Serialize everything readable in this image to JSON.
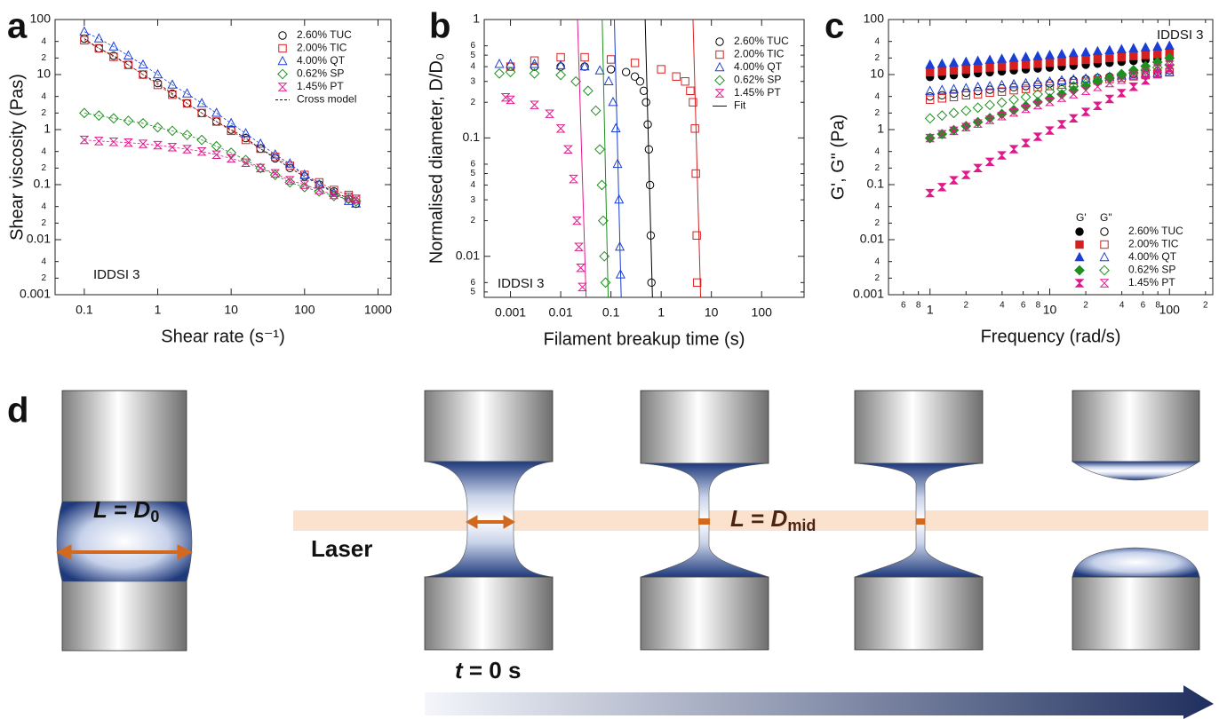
{
  "chart_data": [
    {
      "type": "scatter",
      "panel_label": "a",
      "x_label": "Shear rate (s⁻¹)",
      "y_label": "Shear viscosity (Pas)",
      "annotation": "IDDSI 3",
      "fit_label": "Cross model",
      "log_x": true,
      "log_y": true,
      "xlim": [
        0.04,
        1500
      ],
      "ylim": [
        0.001,
        100
      ],
      "xticks": [
        0.1,
        1,
        10,
        100,
        1000
      ],
      "yticks": [
        0.001,
        {
          "value": 0.002,
          "label": "2"
        },
        {
          "value": 0.004,
          "label": "4"
        },
        0.01,
        {
          "value": 0.02,
          "label": "2"
        },
        {
          "value": 0.04,
          "label": "4"
        },
        0.1,
        {
          "value": 0.2,
          "label": "2"
        },
        {
          "value": 0.4,
          "label": "4"
        },
        1,
        {
          "value": 2,
          "label": "2"
        },
        {
          "value": 4,
          "label": "4"
        },
        10,
        {
          "value": 20,
          "label": "2"
        },
        {
          "value": 40,
          "label": "4"
        },
        100
      ],
      "x": [
        0.1,
        0.158,
        0.251,
        0.398,
        0.631,
        1,
        1.58,
        2.51,
        3.98,
        6.31,
        10,
        15.8,
        25.1,
        39.8,
        63.1,
        100,
        158,
        251,
        398,
        501
      ],
      "series": [
        {
          "name": "2.60% TUC",
          "color": "#000000",
          "marker": "circle",
          "values": [
            45,
            30,
            22,
            15,
            10,
            7,
            4.5,
            3,
            2,
            1.4,
            1,
            0.7,
            0.45,
            0.3,
            0.2,
            0.14,
            0.1,
            0.075,
            0.055,
            0.045
          ]
        },
        {
          "name": "2.00% TIC",
          "color": "#d62020",
          "marker": "square",
          "values": [
            42,
            30,
            21,
            15,
            10,
            6.5,
            4.3,
            3,
            2,
            1.4,
            0.95,
            0.65,
            0.45,
            0.32,
            0.22,
            0.15,
            0.11,
            0.08,
            0.065,
            0.055
          ]
        },
        {
          "name": "4.00% QT",
          "color": "#1a3fd6",
          "marker": "triangle",
          "values": [
            60,
            45,
            32,
            22,
            15,
            10,
            6.5,
            4.5,
            3,
            2,
            1.3,
            0.85,
            0.55,
            0.35,
            0.24,
            0.15,
            0.1,
            0.07,
            0.05,
            0.045
          ]
        },
        {
          "name": "0.62% SP",
          "color": "#1f8f1f",
          "marker": "diamond",
          "values": [
            2,
            1.8,
            1.6,
            1.45,
            1.3,
            1.1,
            0.95,
            0.8,
            0.65,
            0.5,
            0.38,
            0.28,
            0.2,
            0.15,
            0.11,
            0.09,
            0.075,
            0.062,
            0.055,
            0.05
          ]
        },
        {
          "name": "1.45% PT",
          "color": "#e0198c",
          "marker": "hourglass",
          "values": [
            0.65,
            0.62,
            0.6,
            0.58,
            0.55,
            0.52,
            0.48,
            0.44,
            0.4,
            0.35,
            0.3,
            0.25,
            0.2,
            0.16,
            0.12,
            0.1,
            0.08,
            0.065,
            0.06,
            0.055
          ]
        }
      ]
    },
    {
      "type": "scatter",
      "panel_label": "b",
      "x_label": "Filament breakup time (s)",
      "y_label": "Normalised diameter, D/D₀",
      "annotation": "IDDSI 3",
      "fit_label": "Fit",
      "log_x": true,
      "log_y": true,
      "xlim": [
        0.0003,
        700
      ],
      "ylim": [
        0.0045,
        1
      ],
      "xticks": [
        0.001,
        0.01,
        0.1,
        1,
        10,
        100
      ],
      "yticks": [
        {
          "value": 0.005,
          "label": "5"
        },
        {
          "value": 0.006,
          "label": "6"
        },
        0.01,
        {
          "value": 0.02,
          "label": "2"
        },
        {
          "value": 0.03,
          "label": "3"
        },
        {
          "value": 0.04,
          "label": "4"
        },
        {
          "value": 0.05,
          "label": "5"
        },
        {
          "value": 0.06,
          "label": "6"
        },
        0.1,
        {
          "value": 0.2,
          "label": "2"
        },
        {
          "value": 0.3,
          "label": "3"
        },
        {
          "value": 0.4,
          "label": "4"
        },
        {
          "value": 0.5,
          "label": "5"
        },
        {
          "value": 0.6,
          "label": "6"
        },
        1
      ],
      "series": [
        {
          "name": "2.60% TUC",
          "color": "#000000",
          "marker": "circle",
          "x": [
            0.001,
            0.003,
            0.01,
            0.03,
            0.1,
            0.2,
            0.3,
            0.38,
            0.45,
            0.5,
            0.54,
            0.57,
            0.6,
            0.62,
            0.64
          ],
          "values": [
            0.4,
            0.4,
            0.4,
            0.4,
            0.38,
            0.36,
            0.33,
            0.3,
            0.25,
            0.2,
            0.13,
            0.08,
            0.04,
            0.015,
            0.006
          ],
          "fit_x": [
            0.48,
            0.67
          ],
          "fit_y": [
            1,
            0.0045
          ]
        },
        {
          "name": "2.00% TIC",
          "color": "#d62020",
          "marker": "square",
          "x": [
            0.001,
            0.003,
            0.01,
            0.03,
            0.1,
            0.3,
            1,
            2,
            3,
            3.8,
            4.3,
            4.7,
            4.9,
            5.1,
            5.2
          ],
          "values": [
            0.4,
            0.45,
            0.48,
            0.48,
            0.46,
            0.43,
            0.38,
            0.33,
            0.3,
            0.25,
            0.2,
            0.12,
            0.05,
            0.015,
            0.006
          ],
          "fit_x": [
            4.3,
            6.1
          ],
          "fit_y": [
            1,
            0.0045
          ]
        },
        {
          "name": "4.00% QT",
          "color": "#1a3fd6",
          "marker": "triangle",
          "x": [
            0.0006,
            0.001,
            0.003,
            0.01,
            0.03,
            0.06,
            0.09,
            0.11,
            0.125,
            0.135,
            0.145,
            0.15,
            0.155
          ],
          "values": [
            0.42,
            0.42,
            0.42,
            0.41,
            0.4,
            0.37,
            0.3,
            0.2,
            0.12,
            0.06,
            0.03,
            0.012,
            0.007
          ],
          "fit_x": [
            0.117,
            0.16
          ],
          "fit_y": [
            1,
            0.0045
          ]
        },
        {
          "name": "0.62% SP",
          "color": "#1f8f1f",
          "marker": "diamond",
          "x": [
            0.0006,
            0.001,
            0.003,
            0.01,
            0.02,
            0.035,
            0.05,
            0.06,
            0.066,
            0.07,
            0.074,
            0.078
          ],
          "values": [
            0.35,
            0.36,
            0.35,
            0.34,
            0.3,
            0.25,
            0.17,
            0.08,
            0.04,
            0.02,
            0.01,
            0.006
          ],
          "fit_x": [
            0.067,
            0.088
          ],
          "fit_y": [
            1,
            0.0045
          ]
        },
        {
          "name": "1.45% PT",
          "color": "#e0198c",
          "marker": "hourglass",
          "x": [
            0.0008,
            0.001,
            0.003,
            0.006,
            0.01,
            0.014,
            0.018,
            0.021,
            0.023,
            0.025,
            0.027
          ],
          "values": [
            0.22,
            0.21,
            0.19,
            0.16,
            0.12,
            0.08,
            0.045,
            0.02,
            0.012,
            0.008,
            0.0055
          ],
          "fit_x": [
            0.0216,
            0.032
          ],
          "fit_y": [
            1,
            0.0045
          ]
        }
      ]
    },
    {
      "type": "scatter",
      "panel_label": "c",
      "x_label": "Frequency (rad/s)",
      "y_label": "G', G\" (Pa)",
      "annotation": "IDDSI 3",
      "legend_headers": [
        "G'",
        "G\""
      ],
      "log_x": true,
      "log_y": true,
      "xlim": [
        0.45,
        230
      ],
      "ylim": [
        0.001,
        100
      ],
      "xticks": [
        {
          "value": 0.6,
          "label": "6"
        },
        {
          "value": 0.8,
          "label": "8"
        },
        1,
        {
          "value": 2,
          "label": "2"
        },
        {
          "value": 4,
          "label": "4"
        },
        {
          "value": 6,
          "label": "6"
        },
        {
          "value": 8,
          "label": "8"
        },
        10,
        {
          "value": 20,
          "label": "2"
        },
        {
          "value": 40,
          "label": "4"
        },
        {
          "value": 60,
          "label": "6"
        },
        {
          "value": 80,
          "label": "8"
        },
        100,
        {
          "value": 200,
          "label": "2"
        }
      ],
      "yticks": [
        0.001,
        {
          "value": 0.002,
          "label": "2"
        },
        {
          "value": 0.004,
          "label": "4"
        },
        0.01,
        {
          "value": 0.02,
          "label": "2"
        },
        {
          "value": 0.04,
          "label": "4"
        },
        0.1,
        {
          "value": 0.2,
          "label": "2"
        },
        {
          "value": 0.4,
          "label": "4"
        },
        1,
        {
          "value": 2,
          "label": "2"
        },
        {
          "value": 4,
          "label": "4"
        },
        10,
        {
          "value": 20,
          "label": "2"
        },
        {
          "value": 40,
          "label": "4"
        },
        100
      ],
      "x": [
        1,
        1.26,
        1.58,
        2,
        2.51,
        3.16,
        3.98,
        5.01,
        6.31,
        7.94,
        10,
        12.6,
        15.8,
        20,
        25.1,
        31.6,
        39.8,
        50.1,
        63.1,
        79.4,
        100
      ],
      "series": [
        {
          "name": "2.60% TUC",
          "color": "#000000",
          "marker": "circle",
          "storage": [
            9,
            9.4,
            9.7,
            10.1,
            10.6,
            11,
            11.4,
            11.9,
            12.4,
            12.9,
            13.4,
            13.9,
            14.5,
            15.1,
            15.7,
            16.3,
            17,
            17.7,
            18.4,
            19.2,
            20
          ],
          "loss": [
            4,
            4.2,
            4.5,
            4.7,
            5,
            5.3,
            5.6,
            5.9,
            6.2,
            6.6,
            6.9,
            7.3,
            7.8,
            8.2,
            8.7,
            9.1,
            9.7,
            10.2,
            10.8,
            11.4,
            12
          ]
        },
        {
          "name": "2.00% TIC",
          "color": "#d62020",
          "marker": "square",
          "storage": [
            11,
            11.4,
            11.9,
            12.4,
            12.9,
            13.4,
            14,
            14.5,
            15.1,
            15.7,
            16.4,
            17,
            17.7,
            18.5,
            19.2,
            20,
            20.8,
            21.7,
            22.6,
            23.5,
            24
          ],
          "loss": [
            3.5,
            3.7,
            3.9,
            4.2,
            4.4,
            4.7,
            4.9,
            5.2,
            5.5,
            5.9,
            6.2,
            6.6,
            7,
            7.4,
            7.8,
            8.3,
            8.8,
            9.3,
            9.8,
            10.4,
            11
          ]
        },
        {
          "name": "4.00% QT",
          "color": "#1a3fd6",
          "marker": "triangle",
          "storage": [
            15,
            15.6,
            16.3,
            16.9,
            17.6,
            18.3,
            19.1,
            19.9,
            20.7,
            21.5,
            22.4,
            23.3,
            24.3,
            25.3,
            26.3,
            27.4,
            28.5,
            29.7,
            30.9,
            32,
            33
          ],
          "loss": [
            5,
            5.2,
            5.4,
            5.6,
            5.9,
            6.1,
            6.4,
            6.6,
            6.9,
            7.2,
            7.4,
            7.8,
            8.1,
            8.4,
            8.7,
            9.1,
            9.5,
            9.9,
            10.3,
            10.6,
            11
          ]
        },
        {
          "name": "0.62% SP",
          "color": "#1f8f1f",
          "marker": "diamond",
          "storage": [
            0.7,
            0.83,
            0.98,
            1.16,
            1.37,
            1.62,
            1.92,
            2.27,
            2.68,
            3.17,
            3.7,
            4.4,
            5.2,
            6.2,
            7.3,
            8.6,
            10.2,
            12,
            14.2,
            16.8,
            20
          ],
          "loss": [
            1.6,
            1.8,
            2,
            2.2,
            2.5,
            2.8,
            3.1,
            3.5,
            3.9,
            4.4,
            4.9,
            5.5,
            6.1,
            6.9,
            7.7,
            8.6,
            9.6,
            10.7,
            12,
            13.4,
            15
          ]
        },
        {
          "name": "1.45% PT",
          "color": "#e0198c",
          "marker": "hourglass",
          "storage": [
            0.07,
            0.09,
            0.12,
            0.15,
            0.2,
            0.26,
            0.34,
            0.44,
            0.57,
            0.74,
            0.96,
            1.25,
            1.6,
            2.1,
            2.7,
            3.6,
            4.6,
            6,
            7.8,
            10.1,
            13
          ],
          "loss": [
            0.7,
            0.82,
            0.95,
            1.11,
            1.29,
            1.5,
            1.76,
            2.05,
            2.39,
            2.78,
            3.2,
            3.8,
            4.4,
            5.1,
            6,
            7,
            8.1,
            9.5,
            11,
            12.9,
            15
          ]
        }
      ]
    }
  ],
  "diagram": {
    "panel_label": "d",
    "initial_label": [
      "L",
      " = ",
      "D",
      "0"
    ],
    "laser_label": "Laser",
    "neck_label": [
      "L",
      " = ",
      "D",
      "mid"
    ],
    "time_label": [
      "t",
      " = 0 s"
    ]
  }
}
